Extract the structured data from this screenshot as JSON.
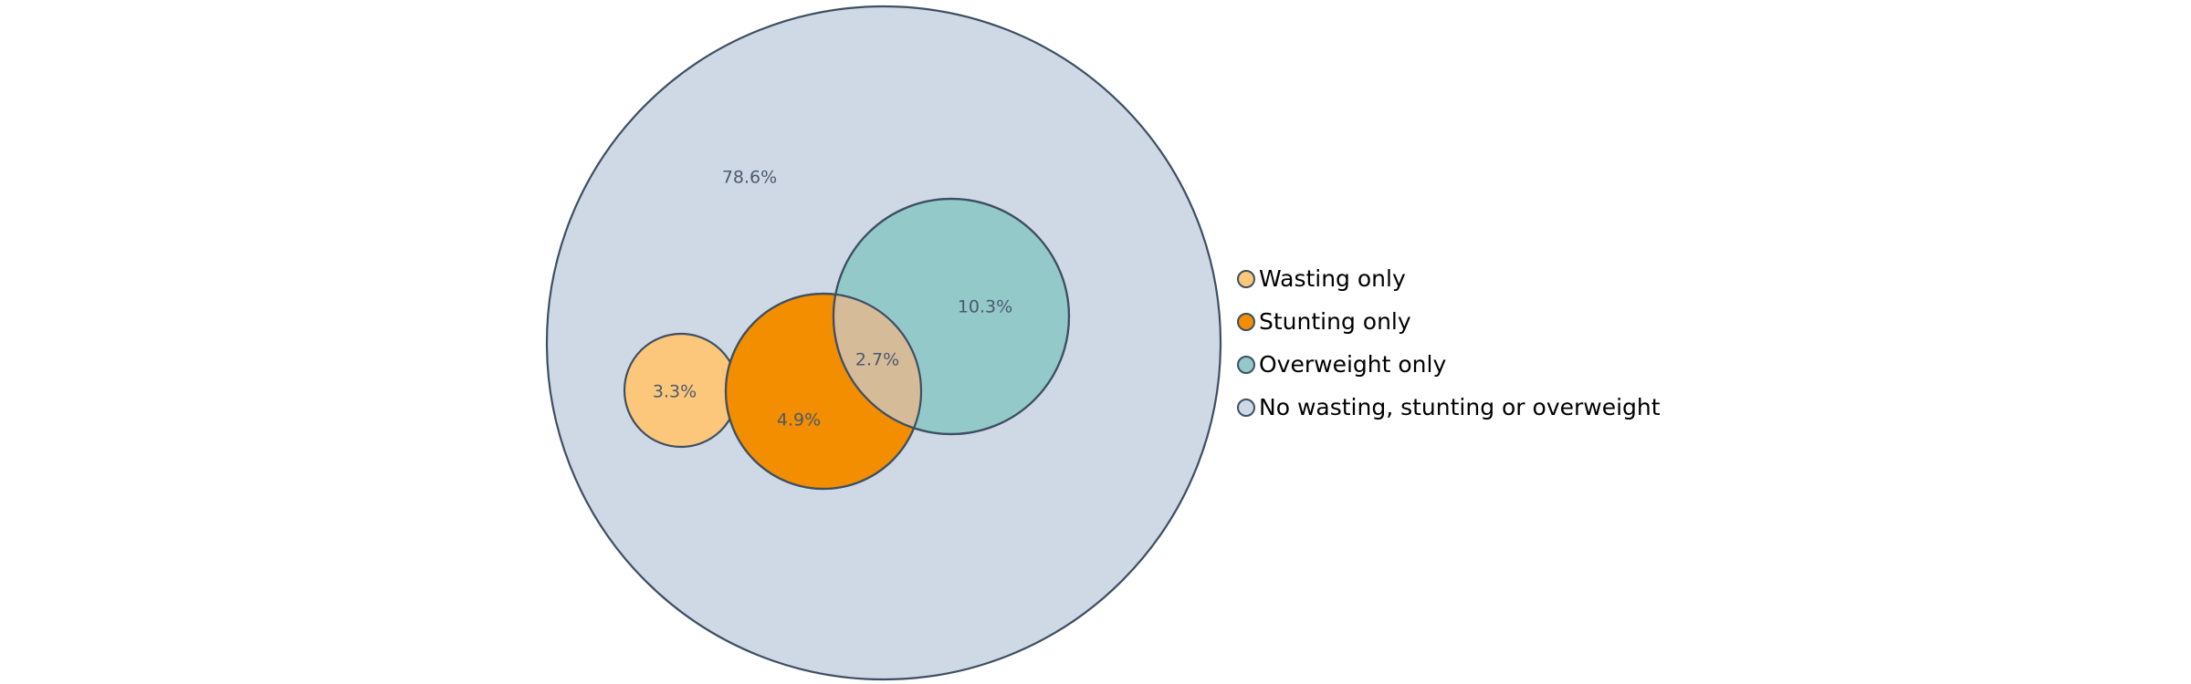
{
  "chart_data": {
    "type": "venn",
    "title": "",
    "sets": [
      {
        "name": "No wasting, stunting or overweight",
        "value_label": "78.6%",
        "value": 78.6,
        "color": "#cfd9e6"
      },
      {
        "name": "Wasting only",
        "value_label": "3.3%",
        "value": 3.3,
        "color": "#fdc77b"
      },
      {
        "name": "Stunting only",
        "value_label": "4.9%",
        "value": 4.9,
        "color": "#f28e00"
      },
      {
        "name": "Overweight only",
        "value_label": "10.3%",
        "value": 10.3,
        "color": "#94c9c9"
      }
    ],
    "overlaps": [
      {
        "sets": [
          "Stunting only",
          "Overweight only"
        ],
        "value_label": "2.7%",
        "value": 2.7,
        "color": "#d6bb98"
      }
    ],
    "legend": {
      "placement": "right",
      "items": [
        {
          "label": "Wasting only",
          "color": "#fdc77b"
        },
        {
          "label": "Stunting only",
          "color": "#f28e00"
        },
        {
          "label": "Overweight only",
          "color": "#94c9c9"
        },
        {
          "label": "No wasting, stunting or overweight",
          "color": "#cfd9e6"
        }
      ]
    },
    "outline_color": "#3d4f63"
  }
}
